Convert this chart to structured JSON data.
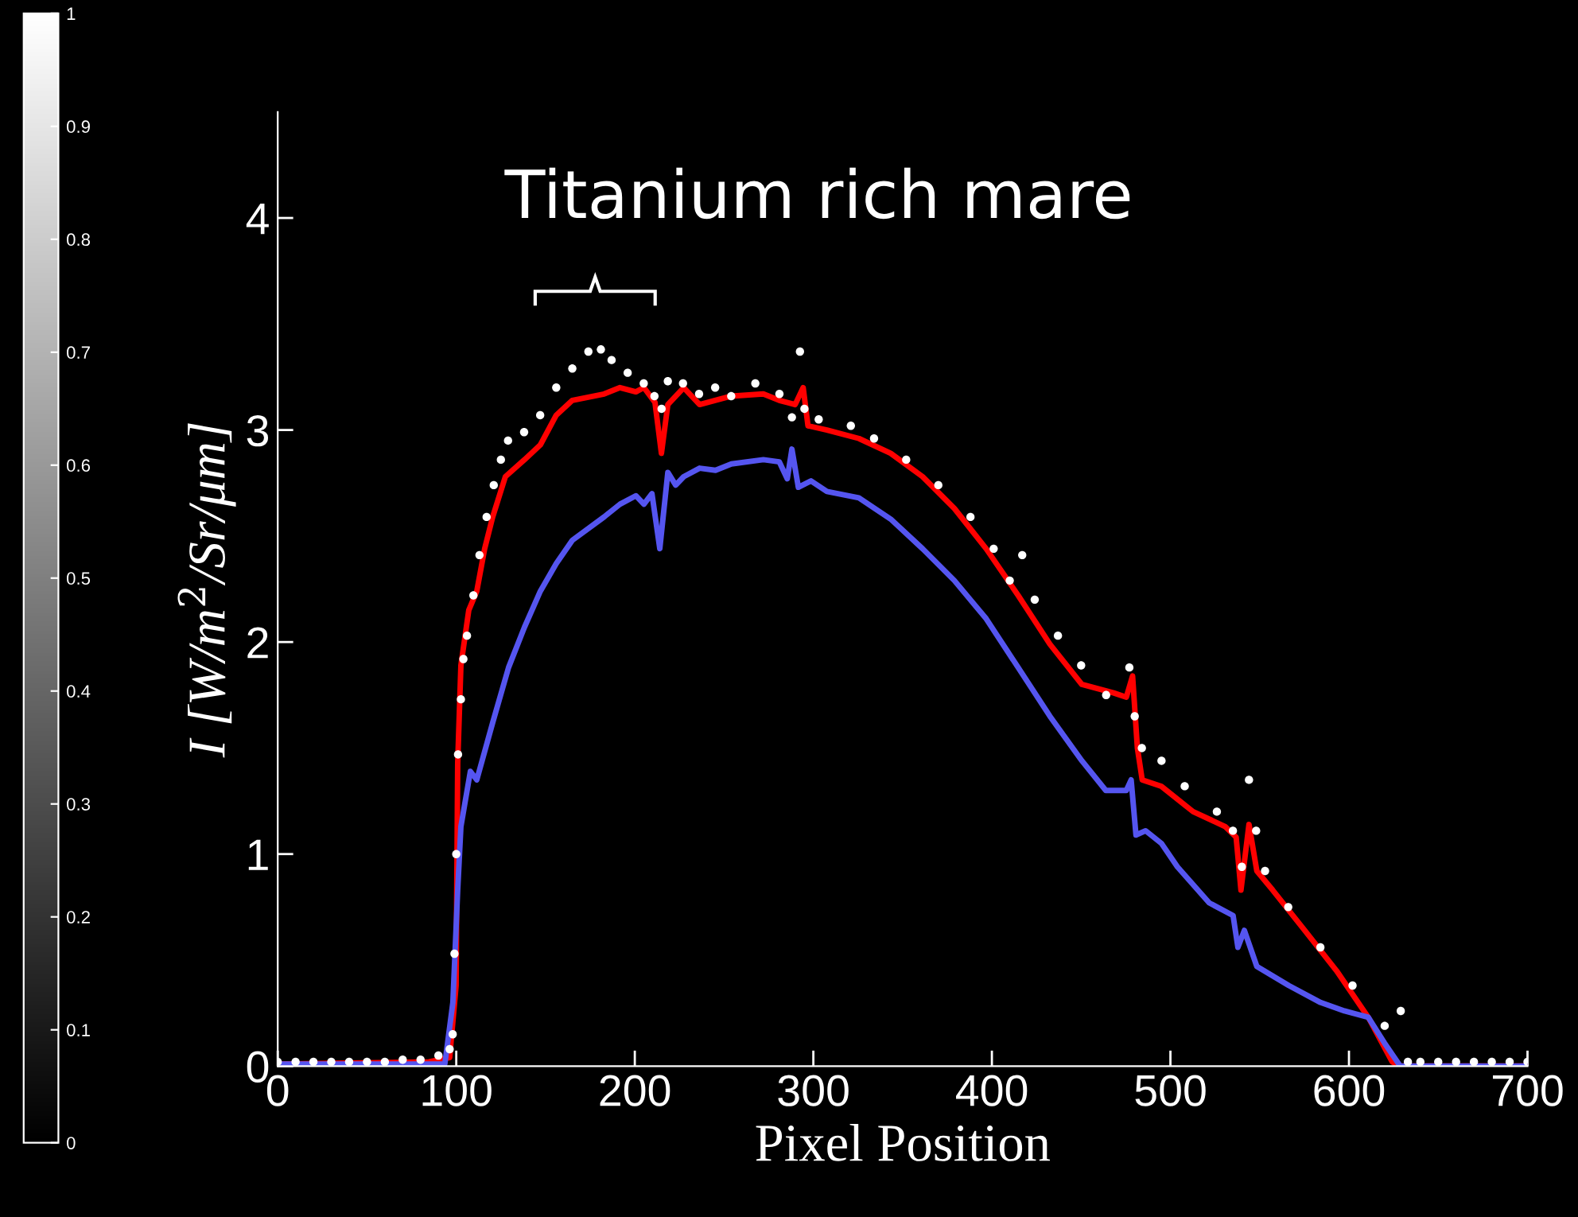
{
  "chart_data": {
    "type": "line",
    "xlabel": "Pixel Position",
    "ylabel": "I [W/m$^{2}$/Sr/μm]",
    "xlim": [
      0,
      700
    ],
    "xticks": [
      0,
      100,
      200,
      300,
      400,
      500,
      600,
      700
    ],
    "ylim": [
      0,
      4.5
    ],
    "yticks": [
      0,
      1,
      2,
      3,
      4
    ],
    "clim": [
      0,
      1
    ],
    "cticks": [
      0,
      0.1,
      0.2,
      0.3,
      0.4,
      0.5,
      0.6,
      0.7,
      0.8,
      0.9,
      1
    ],
    "grid": false,
    "legend": false,
    "annotations": [
      "Titanium rich mare"
    ],
    "series": [
      {
        "color": "#ff0000",
        "x": [
          0,
          84.7,
          96.3,
          99.9,
          100.8,
          102.6,
          107,
          111.5,
          115.9,
          120.4,
          127.5,
          138.2,
          147.1,
          156,
          165,
          182.8,
          191.7,
          200.6,
          205.1,
          211.3,
          214.9,
          218.5,
          227.4,
          236.3,
          254.1,
          272,
          280.9,
          289.8,
          294.3,
          297,
          307.6,
          325.5,
          343.3,
          361.2,
          379,
          396.8,
          414.7,
          432.5,
          450.4,
          468.2,
          475.3,
          478.8,
          481.5,
          484.2,
          494.9,
          512.7,
          530.6,
          536.8,
          539.5,
          544,
          548.4,
          557.3,
          575.2,
          593,
          610.8,
          624.2,
          628.7,
          700
        ],
        "values": [
          0.01,
          0.02,
          0.04,
          0.38,
          1.43,
          1.89,
          2.15,
          2.24,
          2.44,
          2.59,
          2.78,
          2.86,
          2.93,
          3.07,
          3.14,
          3.17,
          3.2,
          3.18,
          3.2,
          3.13,
          2.89,
          3.12,
          3.2,
          3.12,
          3.16,
          3.17,
          3.14,
          3.12,
          3.2,
          3.02,
          3.0,
          2.96,
          2.89,
          2.78,
          2.63,
          2.44,
          2.22,
          1.99,
          1.8,
          1.76,
          1.74,
          1.84,
          1.5,
          1.35,
          1.32,
          1.2,
          1.13,
          1.08,
          0.83,
          1.14,
          0.92,
          0.83,
          0.64,
          0.45,
          0.23,
          0.02,
          0.0,
          0.0
        ]
      },
      {
        "color": "#5555f0",
        "x": [
          0,
          93.6,
          98.1,
          100.8,
          102.6,
          107.9,
          111.5,
          120.4,
          129.3,
          138.2,
          147.1,
          156,
          165,
          182.8,
          191.7,
          200.6,
          205.1,
          209.6,
          214,
          218.5,
          222.9,
          227.4,
          236.3,
          245.2,
          254.1,
          272,
          280.9,
          285.4,
          288,
          291.6,
          298.7,
          307.6,
          325.5,
          343.3,
          361.2,
          379,
          396.8,
          414.7,
          432.5,
          450.4,
          463.8,
          475.3,
          478,
          480.7,
          486.1,
          495,
          503.9,
          521.7,
          535.1,
          537.8,
          541.4,
          548.4,
          566.3,
          584.1,
          597.5,
          610.8,
          619.8,
          628.7,
          700
        ],
        "values": [
          0.01,
          0.01,
          0.3,
          0.83,
          1.13,
          1.39,
          1.35,
          1.62,
          1.88,
          2.07,
          2.24,
          2.37,
          2.48,
          2.59,
          2.65,
          2.69,
          2.65,
          2.7,
          2.44,
          2.8,
          2.74,
          2.78,
          2.82,
          2.81,
          2.84,
          2.86,
          2.85,
          2.77,
          2.91,
          2.73,
          2.76,
          2.71,
          2.68,
          2.58,
          2.44,
          2.29,
          2.11,
          1.88,
          1.65,
          1.44,
          1.3,
          1.3,
          1.35,
          1.09,
          1.11,
          1.05,
          0.94,
          0.77,
          0.71,
          0.56,
          0.64,
          0.47,
          0.38,
          0.3,
          0.26,
          0.23,
          0.11,
          0.0,
          0.0
        ]
      },
      {
        "type": "scatter",
        "color": "#ffffff",
        "marker": "circle",
        "x": [
          0,
          10,
          20,
          30,
          40,
          50,
          60,
          70,
          80,
          90,
          96.3,
          98,
          99,
          100,
          101,
          102.6,
          104,
          106,
          109.6,
          113,
          117,
          121,
          125,
          129,
          138,
          147,
          156,
          165,
          174,
          181,
          187,
          196,
          205,
          211,
          215,
          218.5,
          227,
          236,
          245,
          254,
          267.5,
          281,
          288,
          292.5,
          295,
          303,
          321,
          334,
          352,
          370,
          388,
          401,
          410,
          417,
          424,
          437,
          450,
          464,
          477,
          480,
          484,
          495,
          508,
          526,
          535,
          540,
          544,
          548,
          553,
          566,
          584,
          602,
          620,
          629,
          633,
          640,
          650,
          660,
          670,
          680,
          690,
          700
        ],
        "values": [
          0.02,
          0.02,
          0.02,
          0.02,
          0.02,
          0.02,
          0.02,
          0.03,
          0.03,
          0.05,
          0.08,
          0.15,
          0.53,
          1.0,
          1.47,
          1.73,
          1.92,
          2.03,
          2.22,
          2.41,
          2.59,
          2.74,
          2.86,
          2.95,
          2.99,
          3.07,
          3.2,
          3.29,
          3.37,
          3.38,
          3.33,
          3.27,
          3.22,
          3.16,
          3.1,
          3.23,
          3.22,
          3.17,
          3.2,
          3.16,
          3.22,
          3.17,
          3.06,
          3.37,
          3.1,
          3.05,
          3.02,
          2.96,
          2.86,
          2.74,
          2.59,
          2.44,
          2.29,
          2.41,
          2.2,
          2.03,
          1.89,
          1.75,
          1.88,
          1.65,
          1.5,
          1.44,
          1.32,
          1.2,
          1.11,
          0.94,
          1.35,
          1.11,
          0.92,
          0.75,
          0.56,
          0.38,
          0.19,
          0.26,
          0.02,
          0.02,
          0.02,
          0.02,
          0.02,
          0.02,
          0.02,
          0.02
        ]
      }
    ]
  }
}
